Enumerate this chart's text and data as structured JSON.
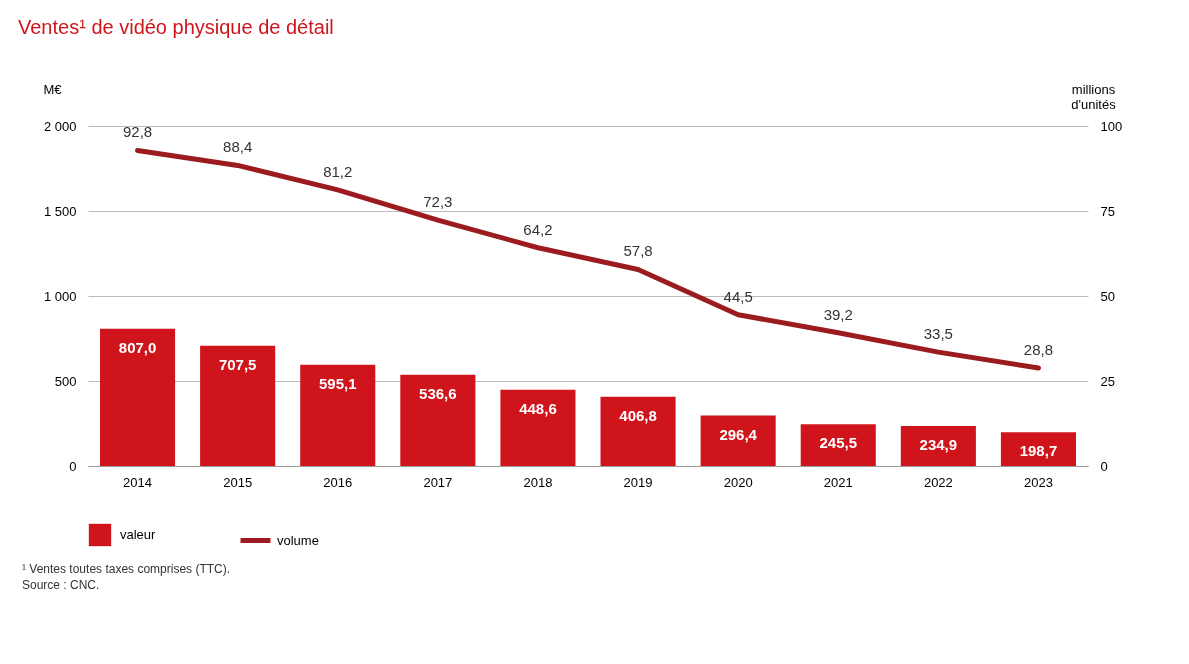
{
  "chart_data": {
    "type": "bar",
    "title": "Ventes¹ de vidéo physique de détail",
    "ylabel": "M€",
    "y2label": "millions d'unités",
    "categories": [
      "2014",
      "2015",
      "2016",
      "2017",
      "2018",
      "2019",
      "2020",
      "2021",
      "2022",
      "2023"
    ],
    "series": [
      {
        "name": "valeur",
        "color": "#d0141b",
        "values": [
          807.0,
          707.5,
          595.1,
          536.6,
          448.6,
          406.8,
          296.4,
          245.5,
          234.9,
          198.7
        ],
        "value_labels": [
          "807,0",
          "707,5",
          "595,1",
          "536,6",
          "448,6",
          "406,8",
          "296,4",
          "245,5",
          "234,9",
          "198,7"
        ]
      },
      {
        "name": "volume",
        "type": "line",
        "axis": "y2",
        "color": "#9b1b1f",
        "values": [
          92.8,
          88.4,
          81.2,
          72.3,
          64.2,
          57.8,
          44.5,
          39.2,
          33.5,
          28.8
        ],
        "value_labels": [
          "92,8",
          "88,4",
          "81,2",
          "72,3",
          "64,2",
          "57,8",
          "44,5",
          "39,2",
          "33,5",
          "28,8"
        ]
      }
    ],
    "ylim": [
      0,
      2000
    ],
    "yticks": [
      {
        "value": 0,
        "label": "0"
      },
      {
        "value": 500,
        "label": "500"
      },
      {
        "value": 1000,
        "label": "1 000"
      },
      {
        "value": 1500,
        "label": "1 500"
      },
      {
        "value": 2000,
        "label": "2 000"
      }
    ],
    "y2lim": [
      0,
      100
    ],
    "y2ticks": [
      0,
      25,
      50,
      75,
      100
    ],
    "grid": "y",
    "legend": "bottom left",
    "marker": "none",
    "line_style": "solid",
    "annotations": [
      "¹ Ventes toutes taxes comprises (TTC).",
      "Source : CNC."
    ]
  }
}
